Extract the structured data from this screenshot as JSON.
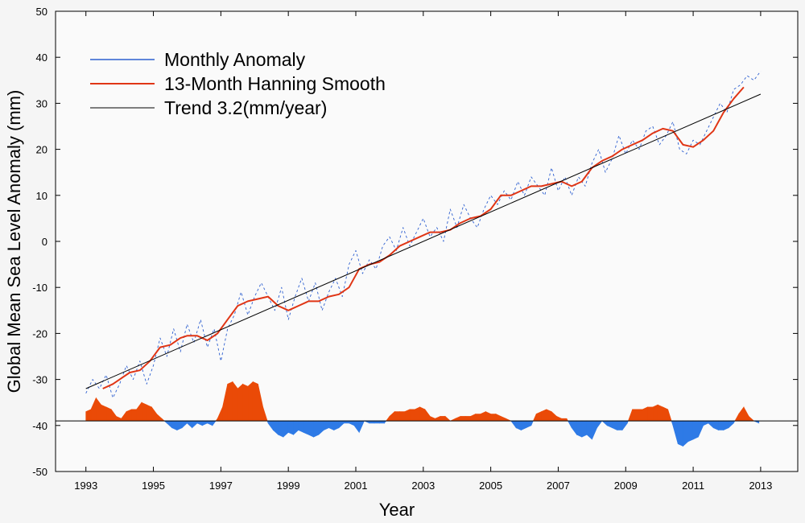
{
  "chart_data": {
    "type": "line",
    "title": "",
    "xlabel": "Year",
    "ylabel": "Global Mean Sea Level Anomaly (mm)",
    "xlim": [
      1992.1,
      2014.1
    ],
    "ylim": [
      -50,
      50
    ],
    "x_ticks": [
      1993,
      1995,
      1997,
      1999,
      2001,
      2003,
      2005,
      2007,
      2009,
      2011,
      2013
    ],
    "y_ticks": [
      -50,
      -40,
      -30,
      -20,
      -10,
      0,
      10,
      20,
      30,
      40,
      50
    ],
    "grid": false,
    "legend_position": "top-left",
    "colors": {
      "monthly": "#2d5fd0",
      "smooth": "#e03515",
      "trend": "#000000",
      "residual_positive": "#ea4a07",
      "residual_negative": "#2e7ae6"
    },
    "series": [
      {
        "name": "Monthly Anomaly",
        "style": "dashed",
        "x": [
          1993.0,
          1993.2,
          1993.4,
          1993.6,
          1993.8,
          1994.0,
          1994.2,
          1994.4,
          1994.6,
          1994.8,
          1995.0,
          1995.2,
          1995.4,
          1995.6,
          1995.8,
          1996.0,
          1996.2,
          1996.4,
          1996.6,
          1996.8,
          1997.0,
          1997.2,
          1997.4,
          1997.6,
          1997.8,
          1998.0,
          1998.2,
          1998.4,
          1998.6,
          1998.8,
          1999.0,
          1999.2,
          1999.4,
          1999.6,
          1999.8,
          2000.0,
          2000.2,
          2000.4,
          2000.6,
          2000.8,
          2001.0,
          2001.2,
          2001.4,
          2001.6,
          2001.8,
          2002.0,
          2002.2,
          2002.4,
          2002.6,
          2002.8,
          2003.0,
          2003.2,
          2003.4,
          2003.6,
          2003.8,
          2004.0,
          2004.2,
          2004.4,
          2004.6,
          2004.8,
          2005.0,
          2005.2,
          2005.4,
          2005.6,
          2005.8,
          2006.0,
          2006.2,
          2006.4,
          2006.6,
          2006.8,
          2007.0,
          2007.2,
          2007.4,
          2007.6,
          2007.8,
          2008.0,
          2008.2,
          2008.4,
          2008.6,
          2008.8,
          2009.0,
          2009.2,
          2009.4,
          2009.6,
          2009.8,
          2010.0,
          2010.2,
          2010.4,
          2010.6,
          2010.8,
          2011.0,
          2011.2,
          2011.4,
          2011.6,
          2011.8,
          2012.0,
          2012.2,
          2012.4,
          2012.6,
          2012.8,
          2013.0
        ],
        "y": [
          -33,
          -30,
          -32,
          -29,
          -34,
          -31,
          -27,
          -30,
          -26,
          -31,
          -27,
          -21,
          -25,
          -19,
          -24,
          -18,
          -22,
          -17,
          -23,
          -19,
          -26,
          -19,
          -16,
          -11,
          -16,
          -12,
          -9,
          -12,
          -15,
          -10,
          -17,
          -12,
          -8,
          -13,
          -9,
          -15,
          -11,
          -8,
          -12,
          -5,
          -2,
          -7,
          -4,
          -6,
          -1,
          1,
          -2,
          3,
          -1,
          2,
          5,
          1,
          3,
          0,
          7,
          3,
          8,
          5,
          3,
          7,
          10,
          8,
          11,
          9,
          13,
          10,
          14,
          12,
          10,
          16,
          11,
          14,
          10,
          14,
          12,
          17,
          20,
          15,
          18,
          23,
          19,
          22,
          20,
          24,
          25,
          21,
          23,
          26,
          20,
          19,
          22,
          21,
          24,
          27,
          30,
          28,
          33,
          34,
          36,
          35,
          37
        ]
      },
      {
        "name": "13-Month Hanning Smooth",
        "style": "solid",
        "x": [
          1993.5,
          1993.8,
          1994.0,
          1994.3,
          1994.6,
          1994.9,
          1995.2,
          1995.5,
          1995.8,
          1996.0,
          1996.3,
          1996.6,
          1996.9,
          1997.2,
          1997.5,
          1997.8,
          1998.1,
          1998.4,
          1998.7,
          1999.0,
          1999.3,
          1999.6,
          1999.9,
          2000.2,
          2000.5,
          2000.8,
          2001.1,
          2001.4,
          2001.7,
          2002.0,
          2002.3,
          2002.6,
          2002.9,
          2003.2,
          2003.5,
          2003.8,
          2004.1,
          2004.4,
          2004.7,
          2005.0,
          2005.3,
          2005.6,
          2005.9,
          2006.2,
          2006.5,
          2006.8,
          2007.1,
          2007.4,
          2007.7,
          2008.0,
          2008.3,
          2008.6,
          2008.9,
          2009.2,
          2009.5,
          2009.8,
          2010.1,
          2010.4,
          2010.7,
          2011.0,
          2011.3,
          2011.6,
          2011.9,
          2012.2,
          2012.5
        ],
        "y": [
          -32,
          -31,
          -30,
          -28.5,
          -28,
          -26,
          -23,
          -22.5,
          -21,
          -20.5,
          -20.5,
          -21.5,
          -20,
          -17,
          -14,
          -13,
          -12.5,
          -12,
          -14,
          -15,
          -14,
          -13,
          -13,
          -12,
          -11.5,
          -10,
          -6,
          -5,
          -4.5,
          -3,
          -1,
          0,
          1,
          2,
          2,
          2.5,
          4,
          5,
          5.5,
          7,
          10,
          10,
          11,
          12,
          12,
          12.5,
          13,
          12,
          13,
          16,
          17.5,
          18.5,
          20,
          21,
          22,
          23.5,
          24.5,
          24,
          21,
          20.5,
          22,
          24,
          28,
          31,
          33.5
        ]
      },
      {
        "name": "Trend 3.2(mm/year)",
        "style": "solid",
        "x": [
          1993.0,
          2013.0
        ],
        "y": [
          -32,
          32
        ]
      }
    ],
    "residual_baseline": -39,
    "residual": {
      "x": [
        1993.0,
        1993.15,
        1993.3,
        1993.45,
        1993.6,
        1993.75,
        1993.9,
        1994.05,
        1994.2,
        1994.35,
        1994.5,
        1994.65,
        1994.8,
        1994.95,
        1995.1,
        1995.25,
        1995.4,
        1995.55,
        1995.7,
        1995.85,
        1996.0,
        1996.15,
        1996.3,
        1996.45,
        1996.6,
        1996.75,
        1996.9,
        1997.05,
        1997.2,
        1997.35,
        1997.5,
        1997.65,
        1997.8,
        1997.95,
        1998.1,
        1998.25,
        1998.4,
        1998.55,
        1998.7,
        1998.85,
        1999.0,
        1999.15,
        1999.3,
        1999.45,
        1999.6,
        1999.75,
        1999.9,
        2000.05,
        2000.2,
        2000.35,
        2000.5,
        2000.65,
        2000.8,
        2000.95,
        2001.1,
        2001.25,
        2001.4,
        2001.55,
        2001.7,
        2001.85,
        2002.0,
        2002.15,
        2002.3,
        2002.45,
        2002.6,
        2002.75,
        2002.9,
        2003.05,
        2003.2,
        2003.35,
        2003.5,
        2003.65,
        2003.8,
        2003.95,
        2004.1,
        2004.25,
        2004.4,
        2004.55,
        2004.7,
        2004.85,
        2005.0,
        2005.15,
        2005.3,
        2005.45,
        2005.6,
        2005.75,
        2005.9,
        2006.05,
        2006.2,
        2006.35,
        2006.5,
        2006.65,
        2006.8,
        2006.95,
        2007.1,
        2007.25,
        2007.4,
        2007.55,
        2007.7,
        2007.85,
        2008.0,
        2008.15,
        2008.3,
        2008.45,
        2008.6,
        2008.75,
        2008.9,
        2009.05,
        2009.2,
        2009.35,
        2009.5,
        2009.65,
        2009.8,
        2009.95,
        2010.1,
        2010.25,
        2010.4,
        2010.55,
        2010.7,
        2010.85,
        2011.0,
        2011.15,
        2011.3,
        2011.45,
        2011.6,
        2011.75,
        2011.9,
        2012.05,
        2012.2,
        2012.35,
        2012.5,
        2012.65,
        2012.8,
        2012.95
      ],
      "y": [
        -37,
        -36.5,
        -34,
        -35.5,
        -36,
        -36.5,
        -38,
        -38.5,
        -37,
        -36.5,
        -36.5,
        -35,
        -35.5,
        -36,
        -37.5,
        -38.5,
        -39.5,
        -40.5,
        -41,
        -40.5,
        -39.5,
        -40.5,
        -39.5,
        -40,
        -39.5,
        -40,
        -38.5,
        -36,
        -31,
        -30.5,
        -32,
        -31,
        -31.5,
        -30.5,
        -31,
        -36,
        -39.5,
        -41,
        -42,
        -42.5,
        -41.5,
        -42,
        -41,
        -41.5,
        -42,
        -42.5,
        -42,
        -41,
        -40.5,
        -41,
        -40.5,
        -39.5,
        -39.5,
        -40,
        -41.5,
        -39,
        -39.5,
        -39.5,
        -39.5,
        -39.5,
        -38,
        -37,
        -37,
        -37,
        -36.5,
        -36.5,
        -36,
        -36.5,
        -38,
        -38.5,
        -38,
        -38,
        -39,
        -38.5,
        -38,
        -38,
        -38,
        -37.5,
        -37.5,
        -37,
        -37.5,
        -37.5,
        -38,
        -38.5,
        -39,
        -40.5,
        -41,
        -40.5,
        -40,
        -37.5,
        -37,
        -36.5,
        -37,
        -38,
        -38.5,
        -38.5,
        -40.5,
        -42,
        -42.5,
        -42,
        -43,
        -40.5,
        -39,
        -40,
        -40.5,
        -41,
        -41,
        -39.5,
        -36.5,
        -36.5,
        -36.5,
        -36,
        -36,
        -35.5,
        -36,
        -36.5,
        -40,
        -44,
        -44.5,
        -43.5,
        -43,
        -42.5,
        -40,
        -39.5,
        -40.5,
        -41,
        -41,
        -40.5,
        -39.5,
        -37.5,
        -36,
        -38,
        -39,
        -39.5
      ]
    },
    "legend": [
      {
        "label": "Monthly Anomaly",
        "color": "#2d5fd0"
      },
      {
        "label": "13-Month Hanning Smooth",
        "color": "#e03515"
      },
      {
        "label": "Trend 3.2(mm/year)",
        "color": "#000000"
      }
    ]
  }
}
